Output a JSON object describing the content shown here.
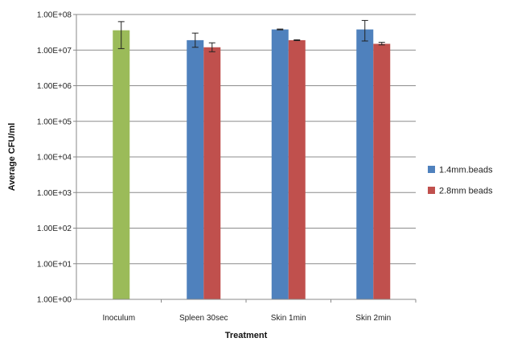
{
  "chart_data": {
    "type": "bar",
    "title": "",
    "xlabel": "Treatment",
    "ylabel": "Average CFU/ml",
    "y_scale": "log",
    "ylim": [
      1,
      100000000
    ],
    "y_ticks": [
      "1.00E+00",
      "1.00E+01",
      "1.00E+02",
      "1.00E+03",
      "1.00E+04",
      "1.00E+05",
      "1.00E+06",
      "1.00E+07",
      "1.00E+08"
    ],
    "grid": true,
    "legend_position": "right",
    "categories": [
      "Inoculum",
      "Spleen 30sec",
      "Skin 1min",
      "Skin 2min"
    ],
    "inoculum": {
      "value": 36000000,
      "err_low": 11000000,
      "err_high": 63000000,
      "color": "#9BBB59"
    },
    "series": [
      {
        "name": "1.4mm.beads",
        "color": "#4F81BD",
        "values": [
          null,
          19000000,
          38000000,
          38000000
        ],
        "err_low": [
          null,
          12000000,
          37000000,
          18000000
        ],
        "err_high": [
          null,
          30000000,
          39000000,
          68000000
        ]
      },
      {
        "name": "2.8mm beads",
        "color": "#C0504D",
        "values": [
          null,
          12000000,
          19000000,
          15000000
        ],
        "err_low": [
          null,
          9000000,
          18500000,
          14000000
        ],
        "err_high": [
          null,
          16000000,
          19500000,
          16500000
        ]
      }
    ]
  }
}
